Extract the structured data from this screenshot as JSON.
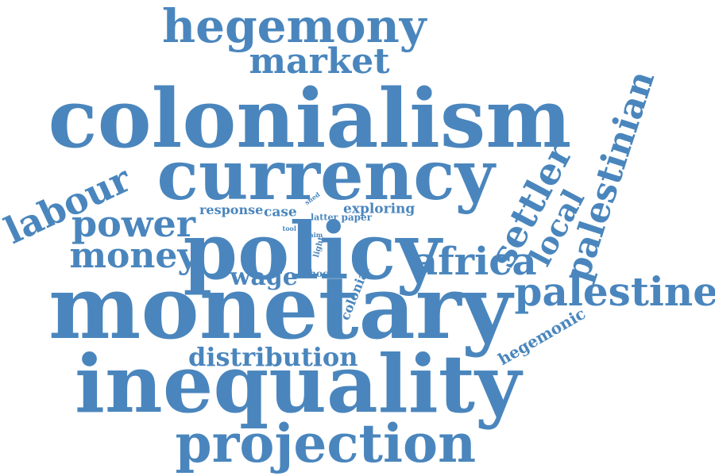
{
  "color": "#4a86bd",
  "words": [
    {
      "id": "hegemony",
      "text": "hegemony"
    },
    {
      "id": "market",
      "text": "market"
    },
    {
      "id": "colonialism",
      "text": "colonialism"
    },
    {
      "id": "currency",
      "text": "currency"
    },
    {
      "id": "labour",
      "text": "labour"
    },
    {
      "id": "power",
      "text": "power"
    },
    {
      "id": "money",
      "text": "money"
    },
    {
      "id": "policy",
      "text": "policy"
    },
    {
      "id": "monetary",
      "text": "monetary"
    },
    {
      "id": "inequality",
      "text": "inequality"
    },
    {
      "id": "projection",
      "text": "projection"
    },
    {
      "id": "distribution",
      "text": "distribution"
    },
    {
      "id": "wage",
      "text": "wage"
    },
    {
      "id": "africa",
      "text": "africa"
    },
    {
      "id": "palestine",
      "text": "palestine"
    },
    {
      "id": "palestinian",
      "text": "palestinian"
    },
    {
      "id": "settler",
      "text": "settler"
    },
    {
      "id": "local",
      "text": "local"
    },
    {
      "id": "hegemonic",
      "text": "hegemonic"
    },
    {
      "id": "colonial",
      "text": "colonial"
    },
    {
      "id": "response",
      "text": "response"
    },
    {
      "id": "case",
      "text": "case"
    },
    {
      "id": "exploring",
      "text": "exploring"
    },
    {
      "id": "shed",
      "text": "shed"
    },
    {
      "id": "latter",
      "text": "latter"
    },
    {
      "id": "paper",
      "text": "paper"
    },
    {
      "id": "tool",
      "text": "tool"
    },
    {
      "id": "aim",
      "text": "aim"
    },
    {
      "id": "light",
      "text": "light"
    },
    {
      "id": "shock",
      "text": "shock"
    }
  ]
}
